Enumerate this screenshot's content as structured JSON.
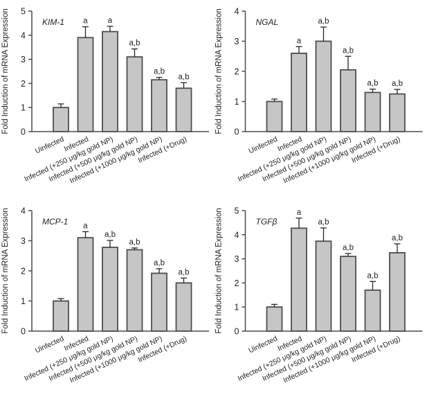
{
  "figure": {
    "background": "#ffffff",
    "layout": "2x2-grid-of-bar-charts"
  },
  "styles": {
    "bar_fill": "#c6c6c6",
    "bar_stroke": "#4d4d4d",
    "axis_color": "#4a4a4a",
    "error_color": "#262626",
    "text_color": "#1f1f1f"
  },
  "chart_data": [
    {
      "type": "bar",
      "title": "KIM-1",
      "ylabel": "Fold Induction of mRNA Expression",
      "xlabel": "",
      "ylim": [
        0,
        5
      ],
      "ytick_step": 1,
      "grid": false,
      "categories": [
        "Uinfected",
        "Infected",
        "Infected (+250 μg/kg gold NP)",
        "Infected (+500 μg/kg gold NP)",
        "Infected (+1000 μg/kg gold NP)",
        "Infected (+Drug)"
      ],
      "values": [
        1.0,
        3.9,
        4.15,
        3.1,
        2.15,
        1.8
      ],
      "errors": [
        0.15,
        0.45,
        0.22,
        0.33,
        0.1,
        0.23
      ],
      "sig_labels": [
        "",
        "a",
        "a",
        "a,b",
        "a,b",
        "a,b"
      ]
    },
    {
      "type": "bar",
      "title": "NGAL",
      "ylabel": "Fold Induction of mRNA Expression",
      "xlabel": "",
      "ylim": [
        0,
        4
      ],
      "ytick_step": 1,
      "grid": false,
      "categories": [
        "Uinfected",
        "Infected",
        "Infected (+250 μg/kg gold NP)",
        "Infected (+500 μg/kg gold NP)",
        "Infected (+1000 μg/kg gold NP)",
        "Infected (+Drug)"
      ],
      "values": [
        1.0,
        2.6,
        3.0,
        2.05,
        1.3,
        1.25
      ],
      "errors": [
        0.08,
        0.22,
        0.47,
        0.45,
        0.11,
        0.15
      ],
      "sig_labels": [
        "",
        "a",
        "a,b",
        "a,b",
        "a,b",
        "a,b"
      ]
    },
    {
      "type": "bar",
      "title": "MCP-1",
      "ylabel": "Fold Induction of mRNA Expression",
      "xlabel": "",
      "ylim": [
        0,
        4
      ],
      "ytick_step": 1,
      "grid": false,
      "categories": [
        "Uinfected",
        "Infected",
        "Infected (+250 μg/kg gold NP)",
        "Infected (+500 μg/kg gold NP)",
        "Infected (+1000 μg/kg gold NP)",
        "Infected (+Drug)"
      ],
      "values": [
        1.0,
        3.1,
        2.78,
        2.7,
        1.92,
        1.6
      ],
      "errors": [
        0.08,
        0.2,
        0.23,
        0.06,
        0.15,
        0.16
      ],
      "sig_labels": [
        "",
        "a",
        "a,b",
        "a,b",
        "a,b",
        "a,b"
      ]
    },
    {
      "type": "bar",
      "title": "TGFβ",
      "ylabel": "Fold Induction of mRNA Expression",
      "xlabel": "",
      "ylim": [
        0,
        5
      ],
      "ytick_step": 1,
      "grid": false,
      "categories": [
        "Uinfected",
        "Infected",
        "Infected (+250 μg/kg gold NP)",
        "Infected (+500 μg/kg gold NP)",
        "Infected (+1000 μg/kg gold NP)",
        "Infected (+Drug)"
      ],
      "values": [
        1.0,
        4.27,
        3.73,
        3.1,
        1.7,
        3.25
      ],
      "errors": [
        0.11,
        0.42,
        0.55,
        0.12,
        0.36,
        0.37
      ],
      "sig_labels": [
        "",
        "a",
        "a,b",
        "a,b",
        "a,b",
        "a,b"
      ]
    }
  ]
}
